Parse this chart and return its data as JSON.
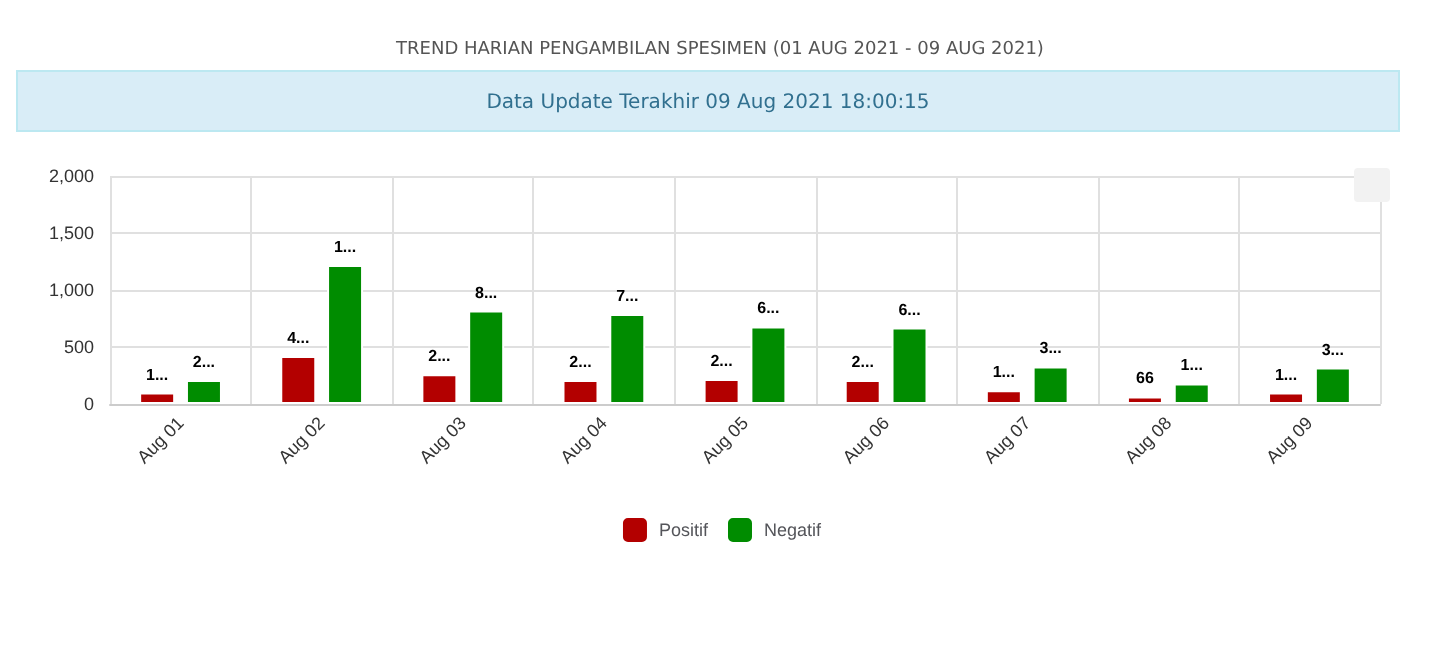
{
  "chart_data": {
    "type": "bar",
    "title": "TREND HARIAN PENGAMBILAN SPESIMEN (01 AUG 2021 - 09 AUG 2021)",
    "subtitle": "Data Update Terakhir 09 Aug 2021 18:00:15",
    "categories": [
      "Aug 01",
      "Aug 02",
      "Aug 03",
      "Aug 04",
      "Aug 05",
      "Aug 06",
      "Aug 07",
      "Aug 08",
      "Aug 09"
    ],
    "series": [
      {
        "name": "Positif",
        "color": "#b30000",
        "values": [
          100,
          420,
          260,
          210,
          220,
          210,
          120,
          66,
          100
        ],
        "value_labels": [
          "1...",
          "4...",
          "2...",
          "2...",
          "2...",
          "2...",
          "1...",
          "66",
          "1..."
        ]
      },
      {
        "name": "Negatif",
        "color": "#008c00",
        "values": [
          210,
          1220,
          820,
          790,
          680,
          670,
          330,
          180,
          320
        ],
        "value_labels": [
          "2...",
          "1...",
          "8...",
          "7...",
          "6...",
          "6...",
          "3...",
          "1...",
          "3..."
        ]
      }
    ],
    "ylim": [
      0,
      2000
    ],
    "yticks": [
      {
        "value": 0,
        "label": "0"
      },
      {
        "value": 500,
        "label": "500"
      },
      {
        "value": 1000,
        "label": "1,000"
      },
      {
        "value": 1500,
        "label": "1,500"
      },
      {
        "value": 2000,
        "label": "2,000"
      }
    ],
    "grid": true,
    "legend": "bottom"
  }
}
